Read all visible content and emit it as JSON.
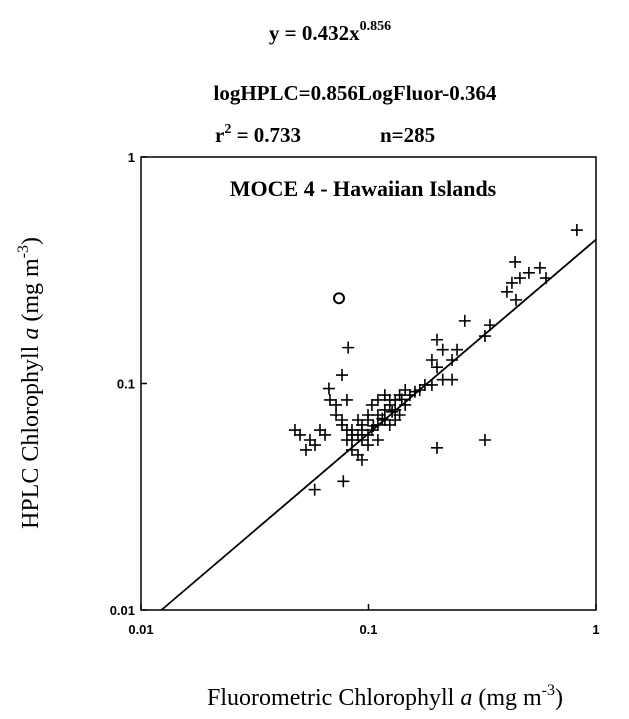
{
  "chart_data": {
    "type": "scatter",
    "equation": {
      "base": "y = 0.432x",
      "exponent": "0.856"
    },
    "log_equation": "logHPLC=0.856LogFluor-0.364",
    "stats": {
      "r": "r",
      "r_exponent": "2",
      "r_value": " = 0.733",
      "n": "n=285"
    },
    "title": "MOCE 4 - Hawaiian Islands",
    "x_label": {
      "text": "Fluorometric Chlorophyll ",
      "italic": "a",
      "unit": " (mg m",
      "unit_exponent": "-3",
      "close": ")"
    },
    "y_label": {
      "text": "HPLC Chlorophyll ",
      "italic": "a",
      "unit": " (mg m",
      "unit_exponent": "-3",
      "close": ")"
    },
    "xlog": true,
    "ylog": true,
    "xlim": [
      0.01,
      1
    ],
    "ylim": [
      0.01,
      1
    ],
    "xticks": [
      0.01,
      0.1,
      1
    ],
    "yticks": [
      0.01,
      0.1,
      1
    ],
    "fit_line": {
      "color": "#000",
      "x": [
        0.0123,
        1
      ],
      "values": [
        0.01,
        0.432
      ]
    },
    "series": [
      {
        "marker": "+",
        "color": "#000",
        "x": [
          0.824,
          0.441,
          0.567,
          0.507,
          0.603,
          0.463,
          0.427,
          0.406,
          0.445,
          0.342,
          0.325,
          0.265,
          0.2,
          0.212,
          0.245,
          0.233,
          0.19,
          0.2,
          0.212,
          0.19,
          0.233,
          0.325,
          0.2,
          0.0775,
          0.058,
          0.0814,
          0.0765,
          0.067,
          0.0677,
          0.0644,
          0.0612,
          0.0582,
          0.0553,
          0.0531,
          0.05,
          0.0475,
          0.072,
          0.0765,
          0.0804,
          0.0846,
          0.0899,
          0.0936,
          0.0995,
          0.1035,
          0.11,
          0.118,
          0.124,
          0.131,
          0.137,
          0.145,
          0.152,
          0.168,
          0.177,
          0.0846,
          0.0899,
          0.0936,
          0.0995,
          0.1035,
          0.11,
          0.118,
          0.124,
          0.0804,
          0.0765,
          0.072,
          0.0804,
          0.0846,
          0.0936,
          0.0995,
          0.11,
          0.124,
          0.131,
          0.137,
          0.145,
          0.0995,
          0.0846,
          0.0899,
          0.0936,
          0.11,
          0.118,
          0.131,
          0.105,
          0.115,
          0.127,
          0.14,
          0.16
        ],
        "values": [
          0.476,
          0.344,
          0.324,
          0.308,
          0.292,
          0.292,
          0.278,
          0.254,
          0.234,
          0.181,
          0.162,
          0.189,
          0.156,
          0.141,
          0.141,
          0.127,
          0.127,
          0.118,
          0.104,
          0.0985,
          0.104,
          0.0563,
          0.052,
          0.037,
          0.034,
          0.144,
          0.109,
          0.095,
          0.0846,
          0.0593,
          0.0623,
          0.0535,
          0.0563,
          0.0509,
          0.0593,
          0.0623,
          0.0726,
          0.0656,
          0.0563,
          0.0509,
          0.0484,
          0.046,
          0.0593,
          0.0623,
          0.0656,
          0.0764,
          0.0804,
          0.0846,
          0.0889,
          0.0936,
          0.0889,
          0.0936,
          0.0985,
          0.0593,
          0.069,
          0.0656,
          0.0726,
          0.0804,
          0.0846,
          0.0889,
          0.0846,
          0.0623,
          0.069,
          0.0804,
          0.0846,
          0.0623,
          0.0563,
          0.0535,
          0.0563,
          0.0656,
          0.069,
          0.0726,
          0.0804,
          0.069,
          0.0563,
          0.0593,
          0.0623,
          0.0726,
          0.069,
          0.0764,
          0.065,
          0.07,
          0.075,
          0.085,
          0.092
        ]
      },
      {
        "marker": "o",
        "color": "#000",
        "x": [
          0.0742
        ],
        "values": [
          0.238
        ]
      }
    ]
  }
}
